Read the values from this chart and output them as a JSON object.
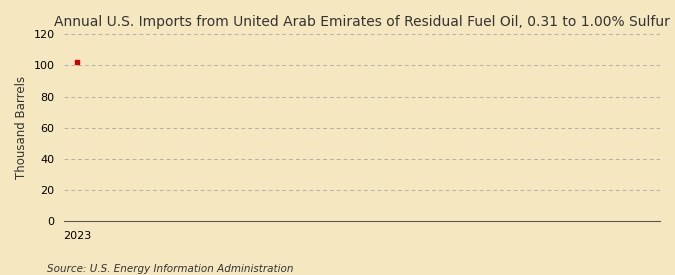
{
  "title": "Annual U.S. Imports from United Arab Emirates of Residual Fuel Oil, 0.31 to 1.00% Sulfur",
  "ylabel": "Thousand Barrels",
  "source_text": "Source: U.S. Energy Information Administration",
  "x_data": [
    2023
  ],
  "y_data": [
    102
  ],
  "point_color": "#cc0000",
  "point_marker": "s",
  "point_size": 3,
  "xlim": [
    2022.7,
    2037
  ],
  "ylim": [
    0,
    120
  ],
  "yticks": [
    0,
    20,
    40,
    60,
    80,
    100,
    120
  ],
  "xticks": [
    2023
  ],
  "background_color": "#f5e8c0",
  "plot_bg_color": "#f5e8c0",
  "grid_color": "#b0b0b0",
  "title_fontsize": 10,
  "label_fontsize": 8.5,
  "tick_fontsize": 8,
  "source_fontsize": 7.5
}
